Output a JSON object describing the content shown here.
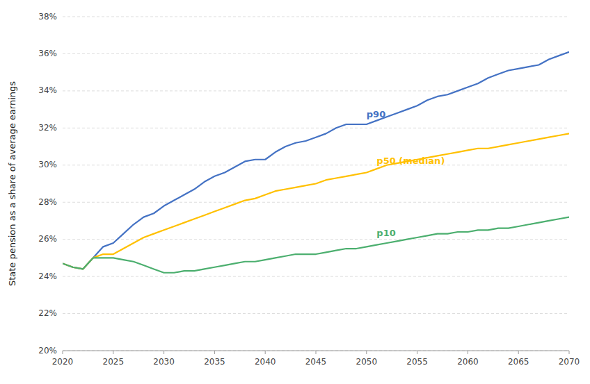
{
  "chart_data": {
    "type": "line",
    "ylabel": "State pension as a share of average earnings",
    "xlim": [
      2020,
      2070
    ],
    "ylim": [
      0.2,
      0.38
    ],
    "xticks": [
      2020,
      2025,
      2030,
      2035,
      2040,
      2045,
      2050,
      2055,
      2060,
      2065,
      2070
    ],
    "yticks": [
      {
        "value": 0.2,
        "label": "20%"
      },
      {
        "value": 0.22,
        "label": "22%"
      },
      {
        "value": 0.24,
        "label": "24%"
      },
      {
        "value": 0.26,
        "label": "26%"
      },
      {
        "value": 0.28,
        "label": "28%"
      },
      {
        "value": 0.3,
        "label": "30%"
      },
      {
        "value": 0.32,
        "label": "32%"
      },
      {
        "value": 0.34,
        "label": "34%"
      },
      {
        "value": 0.36,
        "label": "36%"
      },
      {
        "value": 0.38,
        "label": "38%"
      }
    ],
    "grid": true,
    "x": [
      2020,
      2021,
      2022,
      2023,
      2024,
      2025,
      2026,
      2027,
      2028,
      2029,
      2030,
      2031,
      2032,
      2033,
      2034,
      2035,
      2036,
      2037,
      2038,
      2039,
      2040,
      2041,
      2042,
      2043,
      2044,
      2045,
      2046,
      2047,
      2048,
      2049,
      2050,
      2051,
      2052,
      2053,
      2054,
      2055,
      2056,
      2057,
      2058,
      2059,
      2060,
      2061,
      2062,
      2063,
      2064,
      2065,
      2066,
      2067,
      2068,
      2069,
      2070
    ],
    "series": [
      {
        "color": "#4472C4",
        "values": [
          0.247,
          0.245,
          0.244,
          0.25,
          0.256,
          0.258,
          0.263,
          0.268,
          0.272,
          0.274,
          0.278,
          0.281,
          0.284,
          0.287,
          0.291,
          0.294,
          0.296,
          0.299,
          0.302,
          0.303,
          0.303,
          0.307,
          0.31,
          0.312,
          0.313,
          0.315,
          0.317,
          0.32,
          0.322,
          0.322,
          0.322,
          0.324,
          0.326,
          0.328,
          0.33,
          0.332,
          0.335,
          0.337,
          0.338,
          0.34,
          0.342,
          0.344,
          0.347,
          0.349,
          0.351,
          0.352,
          0.353,
          0.354,
          0.357,
          0.359,
          0.361
        ]
      },
      {
        "color": "#FFC000",
        "values": [
          0.247,
          0.245,
          0.244,
          0.25,
          0.252,
          0.252,
          0.255,
          0.258,
          0.261,
          0.263,
          0.265,
          0.267,
          0.269,
          0.271,
          0.273,
          0.275,
          0.277,
          0.279,
          0.281,
          0.282,
          0.284,
          0.286,
          0.287,
          0.288,
          0.289,
          0.29,
          0.292,
          0.293,
          0.294,
          0.295,
          0.296,
          0.298,
          0.3,
          0.301,
          0.302,
          0.303,
          0.304,
          0.305,
          0.306,
          0.307,
          0.308,
          0.309,
          0.309,
          0.31,
          0.311,
          0.312,
          0.313,
          0.314,
          0.315,
          0.316,
          0.317
        ]
      },
      {
        "color": "#4CAF6F",
        "values": [
          0.247,
          0.245,
          0.244,
          0.25,
          0.25,
          0.25,
          0.249,
          0.248,
          0.246,
          0.244,
          0.242,
          0.242,
          0.243,
          0.243,
          0.244,
          0.245,
          0.246,
          0.247,
          0.248,
          0.248,
          0.249,
          0.25,
          0.251,
          0.252,
          0.252,
          0.252,
          0.253,
          0.254,
          0.255,
          0.255,
          0.256,
          0.257,
          0.258,
          0.259,
          0.26,
          0.261,
          0.262,
          0.263,
          0.263,
          0.264,
          0.264,
          0.265,
          0.265,
          0.266,
          0.266,
          0.267,
          0.268,
          0.269,
          0.27,
          0.271,
          0.272
        ]
      }
    ],
    "annotations": [
      {
        "text": "p90",
        "x": 2050,
        "y": 0.327,
        "color": "#4472C4"
      },
      {
        "text": "p50 (median)",
        "x": 2051,
        "y": 0.302,
        "color": "#FFC000"
      },
      {
        "text": "p10",
        "x": 2051,
        "y": 0.263,
        "color": "#4CAF6F"
      }
    ]
  }
}
